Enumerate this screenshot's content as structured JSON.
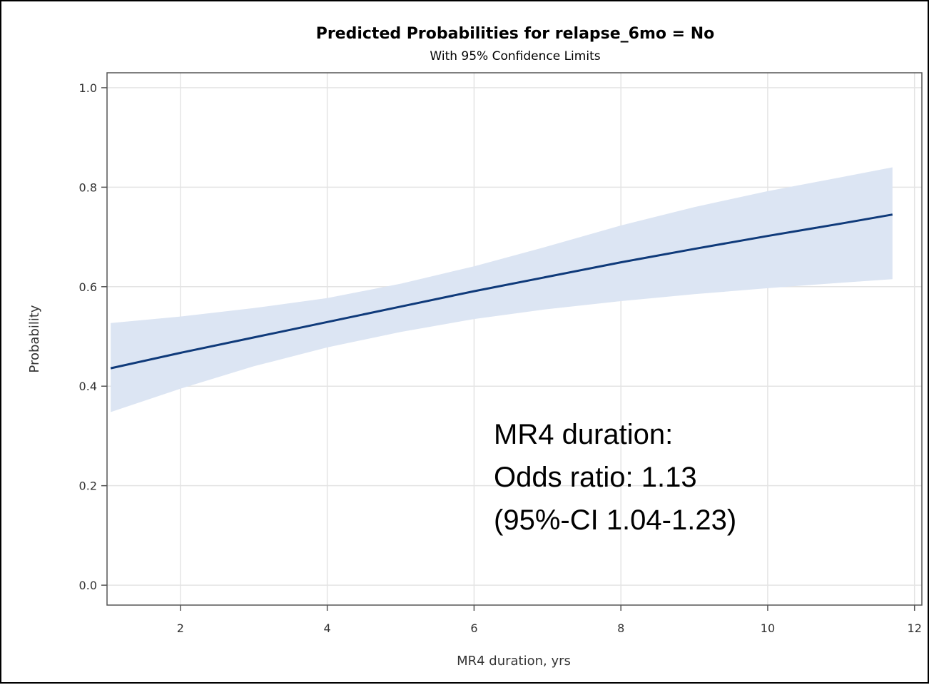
{
  "chart_data": {
    "type": "line",
    "title": "Predicted Probabilities for relapse_6mo = No",
    "subtitle": "With 95% Confidence Limits",
    "xlabel": "MR4 duration, yrs",
    "ylabel": "Probability",
    "xlim": [
      1,
      12.1
    ],
    "ylim": [
      -0.04,
      1.03
    ],
    "x_ticks": [
      2,
      4,
      6,
      8,
      10,
      12
    ],
    "x_tick_labels": [
      "2",
      "4",
      "6",
      "8",
      "10",
      "12"
    ],
    "y_ticks": [
      0.0,
      0.2,
      0.4,
      0.6,
      0.8,
      1.0
    ],
    "y_tick_labels": [
      "0.0",
      "0.2",
      "0.4",
      "0.6",
      "0.8",
      "1.0"
    ],
    "grid": true,
    "series": [
      {
        "x": [
          1.05,
          2,
          3,
          4,
          5,
          6,
          7,
          8,
          9,
          10,
          11,
          11.7
        ],
        "y": [
          0.436,
          0.467,
          0.498,
          0.529,
          0.56,
          0.591,
          0.62,
          0.649,
          0.676,
          0.702,
          0.727,
          0.745
        ],
        "lower": [
          0.348,
          0.395,
          0.44,
          0.478,
          0.509,
          0.535,
          0.555,
          0.571,
          0.585,
          0.597,
          0.608,
          0.615
        ],
        "upper": [
          0.527,
          0.54,
          0.557,
          0.577,
          0.606,
          0.641,
          0.681,
          0.723,
          0.76,
          0.792,
          0.82,
          0.84
        ]
      }
    ],
    "colors": {
      "line": "#0f3a7a",
      "band": "#dce5f3",
      "grid": "#e4e4e4",
      "axis": "#555555"
    },
    "annotation": [
      "MR4 duration:",
      "Odds ratio: 1.13",
      "(95%-CI 1.04-1.23)"
    ]
  }
}
